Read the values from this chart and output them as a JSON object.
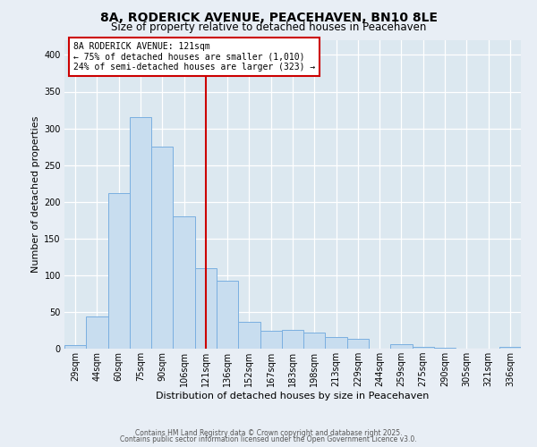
{
  "title": "8A, RODERICK AVENUE, PEACEHAVEN, BN10 8LE",
  "subtitle": "Size of property relative to detached houses in Peacehaven",
  "xlabel": "Distribution of detached houses by size in Peacehaven",
  "ylabel": "Number of detached properties",
  "bin_labels": [
    "29sqm",
    "44sqm",
    "60sqm",
    "75sqm",
    "90sqm",
    "106sqm",
    "121sqm",
    "136sqm",
    "152sqm",
    "167sqm",
    "183sqm",
    "198sqm",
    "213sqm",
    "229sqm",
    "244sqm",
    "259sqm",
    "275sqm",
    "290sqm",
    "305sqm",
    "321sqm",
    "336sqm"
  ],
  "bar_values": [
    5,
    44,
    212,
    315,
    275,
    180,
    110,
    93,
    37,
    24,
    25,
    22,
    16,
    13,
    0,
    6,
    3,
    1,
    0,
    0,
    2
  ],
  "bar_color": "#c8ddef",
  "bar_edge_color": "#7aafe0",
  "vline_x_index": 6,
  "vline_color": "#cc0000",
  "annotation_line1": "8A RODERICK AVENUE: 121sqm",
  "annotation_line2": "← 75% of detached houses are smaller (1,010)",
  "annotation_line3": "24% of semi-detached houses are larger (323) →",
  "annotation_box_edge_color": "#cc0000",
  "ylim": [
    0,
    420
  ],
  "yticks": [
    0,
    50,
    100,
    150,
    200,
    250,
    300,
    350,
    400
  ],
  "footer1": "Contains HM Land Registry data © Crown copyright and database right 2025.",
  "footer2": "Contains public sector information licensed under the Open Government Licence v3.0.",
  "fig_background": "#e8eef5",
  "plot_background": "#dce8f0",
  "title_fontsize": 10,
  "subtitle_fontsize": 8.5,
  "tick_fontsize": 7,
  "label_fontsize": 8,
  "annotation_fontsize": 7,
  "footer_fontsize": 5.5
}
